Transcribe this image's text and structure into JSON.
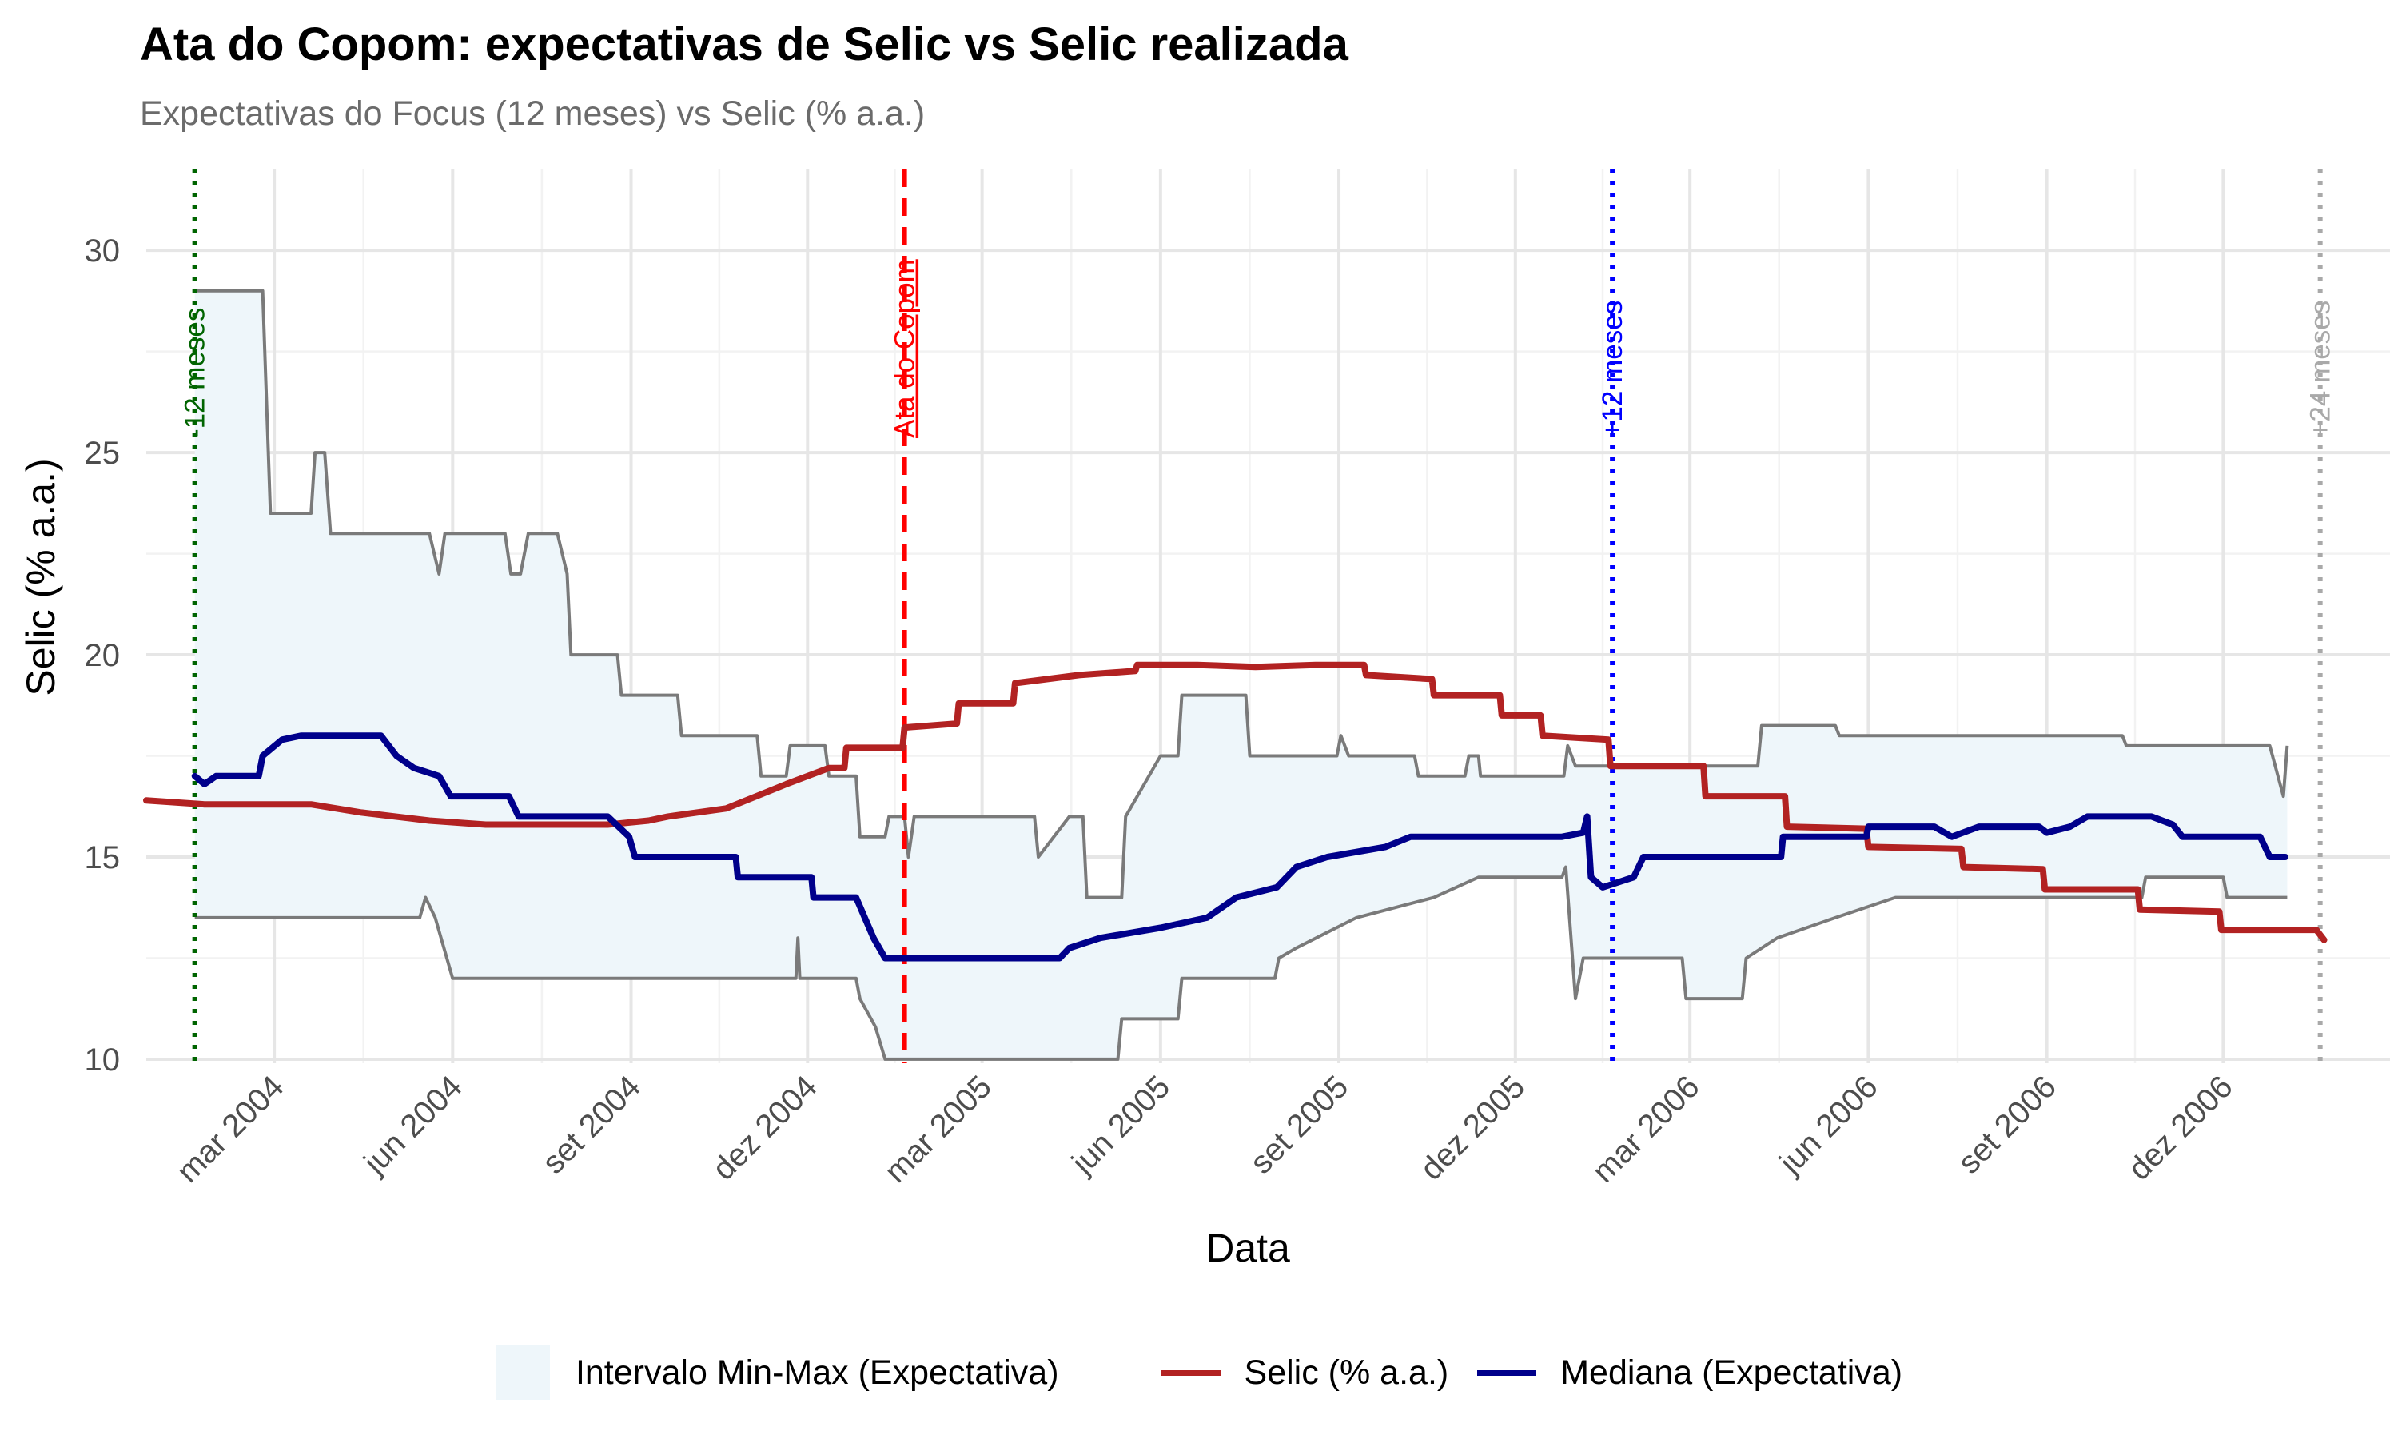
{
  "title": "Ata do Copom: expectativas de Selic vs Selic realizada",
  "subtitle": "Expectativas do Focus (12 meses) vs Selic (% a.a.)",
  "legend": {
    "ribbon": "Intervalo Min-Max (Expectativa)",
    "selic": "Selic (% a.a.)",
    "median": "Mediana (Expectativa)"
  },
  "colors": {
    "selic": "#b22222",
    "median": "#00008b",
    "band_fill": "#eef6fa",
    "band_edge": "#7a7a7a",
    "vline_minus12": "#006400",
    "vline_ata": "#ff0000",
    "vline_plus12": "#0000ff",
    "vline_plus24": "#a9a9a9"
  },
  "chart_data": {
    "type": "line",
    "title": "Ata do Copom: expectativas de Selic vs Selic realizada",
    "subtitle": "Expectativas do Focus (12 meses) vs Selic (% a.a.)",
    "xlabel": "Data",
    "ylabel": "Selic (% a.a.)",
    "xlim": [
      "2003-12-26",
      "2007-02-25"
    ],
    "ylim": [
      9.9,
      32.0
    ],
    "x_ticks": [
      {
        "date": "2004-03-01",
        "label": "mar 2004"
      },
      {
        "date": "2004-06-01",
        "label": "jun 2004"
      },
      {
        "date": "2004-09-01",
        "label": "set 2004"
      },
      {
        "date": "2004-12-01",
        "label": "dez 2004"
      },
      {
        "date": "2005-03-01",
        "label": "mar 2005"
      },
      {
        "date": "2005-06-01",
        "label": "jun 2005"
      },
      {
        "date": "2005-09-01",
        "label": "set 2005"
      },
      {
        "date": "2005-12-01",
        "label": "dez 2005"
      },
      {
        "date": "2006-03-01",
        "label": "mar 2006"
      },
      {
        "date": "2006-06-01",
        "label": "jun 2006"
      },
      {
        "date": "2006-09-01",
        "label": "set 2006"
      },
      {
        "date": "2006-12-01",
        "label": "dez 2006"
      }
    ],
    "y_ticks": [
      10,
      15,
      20,
      25,
      30
    ],
    "grid": true,
    "legend_position": "bottom",
    "reference_lines": [
      {
        "date": "2004-01-20",
        "label": "-12 meses",
        "style": "dotted",
        "color": "#006400"
      },
      {
        "date": "2005-01-20",
        "label": "Ata do Copom",
        "style": "dashed",
        "color": "#ff0000"
      },
      {
        "date": "2006-01-20",
        "label": "+12 meses",
        "style": "dotted",
        "color": "#0000ff"
      },
      {
        "date": "2007-01-20",
        "label": "+24 meses",
        "style": "dotted",
        "color": "#a9a9a9"
      }
    ],
    "series": [
      {
        "name": "Selic (% a.a.)",
        "kind": "line",
        "points": [
          [
            "2003-12-26",
            16.4
          ],
          [
            "2004-01-25",
            16.3
          ],
          [
            "2004-02-18",
            16.3
          ],
          [
            "2004-03-20",
            16.3
          ],
          [
            "2004-04-15",
            16.1
          ],
          [
            "2004-05-20",
            15.9
          ],
          [
            "2004-06-18",
            15.8
          ],
          [
            "2004-07-20",
            15.8
          ],
          [
            "2004-08-20",
            15.8
          ],
          [
            "2004-09-10",
            15.9
          ],
          [
            "2004-09-20",
            16.0
          ],
          [
            "2004-10-20",
            16.2
          ],
          [
            "2004-11-20",
            16.8
          ],
          [
            "2004-12-12",
            17.2
          ],
          [
            "2004-12-20",
            17.2
          ],
          [
            "2004-12-21",
            17.7
          ],
          [
            "2005-01-19",
            17.7
          ],
          [
            "2005-01-20",
            18.2
          ],
          [
            "2005-02-16",
            18.3
          ],
          [
            "2005-02-17",
            18.8
          ],
          [
            "2005-03-17",
            18.8
          ],
          [
            "2005-03-18",
            19.3
          ],
          [
            "2005-04-20",
            19.5
          ],
          [
            "2005-05-19",
            19.6
          ],
          [
            "2005-05-20",
            19.75
          ],
          [
            "2005-06-20",
            19.75
          ],
          [
            "2005-07-20",
            19.7
          ],
          [
            "2005-08-20",
            19.75
          ],
          [
            "2005-09-14",
            19.75
          ],
          [
            "2005-09-15",
            19.5
          ],
          [
            "2005-10-19",
            19.4
          ],
          [
            "2005-10-20",
            19.0
          ],
          [
            "2005-11-23",
            19.0
          ],
          [
            "2005-11-24",
            18.5
          ],
          [
            "2005-12-14",
            18.5
          ],
          [
            "2005-12-15",
            18.0
          ],
          [
            "2006-01-18",
            17.9
          ],
          [
            "2006-01-19",
            17.25
          ],
          [
            "2006-03-08",
            17.25
          ],
          [
            "2006-03-09",
            16.5
          ],
          [
            "2006-04-19",
            16.5
          ],
          [
            "2006-04-20",
            15.75
          ],
          [
            "2006-05-31",
            15.7
          ],
          [
            "2006-06-01",
            15.25
          ],
          [
            "2006-07-19",
            15.2
          ],
          [
            "2006-07-20",
            14.75
          ],
          [
            "2006-08-30",
            14.7
          ],
          [
            "2006-08-31",
            14.2
          ],
          [
            "2006-10-18",
            14.2
          ],
          [
            "2006-10-19",
            13.7
          ],
          [
            "2006-11-29",
            13.65
          ],
          [
            "2006-11-30",
            13.2
          ],
          [
            "2007-01-18",
            13.2
          ],
          [
            "2007-01-22",
            12.95
          ]
        ]
      },
      {
        "name": "Mediana (Expectativa)",
        "kind": "line",
        "points": [
          [
            "2004-01-20",
            17.0
          ],
          [
            "2004-01-25",
            16.8
          ],
          [
            "2004-01-31",
            17.0
          ],
          [
            "2004-02-22",
            17.0
          ],
          [
            "2004-02-24",
            17.5
          ],
          [
            "2004-03-05",
            17.9
          ],
          [
            "2004-03-15",
            18.0
          ],
          [
            "2004-04-10",
            18.0
          ],
          [
            "2004-04-25",
            18.0
          ],
          [
            "2004-05-03",
            17.5
          ],
          [
            "2004-05-12",
            17.2
          ],
          [
            "2004-05-25",
            17.0
          ],
          [
            "2004-05-31",
            16.5
          ],
          [
            "2004-06-30",
            16.5
          ],
          [
            "2004-07-05",
            16.0
          ],
          [
            "2004-08-20",
            16.0
          ],
          [
            "2004-08-31",
            15.5
          ],
          [
            "2004-09-03",
            15.0
          ],
          [
            "2004-10-25",
            15.0
          ],
          [
            "2004-10-26",
            14.5
          ],
          [
            "2004-12-03",
            14.5
          ],
          [
            "2004-12-04",
            14.0
          ],
          [
            "2004-12-26",
            14.0
          ],
          [
            "2005-01-04",
            13.0
          ],
          [
            "2005-01-10",
            12.5
          ],
          [
            "2005-03-15",
            12.5
          ],
          [
            "2005-04-10",
            12.5
          ],
          [
            "2005-04-15",
            12.75
          ],
          [
            "2005-05-01",
            13.0
          ],
          [
            "2005-06-01",
            13.25
          ],
          [
            "2005-06-25",
            13.5
          ],
          [
            "2005-07-10",
            14.0
          ],
          [
            "2005-07-31",
            14.25
          ],
          [
            "2005-08-10",
            14.75
          ],
          [
            "2005-08-26",
            15.0
          ],
          [
            "2005-09-25",
            15.25
          ],
          [
            "2005-10-08",
            15.5
          ],
          [
            "2005-12-25",
            15.5
          ],
          [
            "2006-01-05",
            15.6
          ],
          [
            "2006-01-07",
            16.0
          ],
          [
            "2006-01-09",
            14.5
          ],
          [
            "2006-01-15",
            14.25
          ],
          [
            "2006-01-31",
            14.5
          ],
          [
            "2006-02-05",
            15.0
          ],
          [
            "2006-04-17",
            15.0
          ],
          [
            "2006-04-18",
            15.5
          ],
          [
            "2006-05-31",
            15.5
          ],
          [
            "2006-06-01",
            15.75
          ],
          [
            "2006-07-05",
            15.75
          ],
          [
            "2006-07-14",
            15.5
          ],
          [
            "2006-07-28",
            15.75
          ],
          [
            "2006-08-28",
            15.75
          ],
          [
            "2006-09-01",
            15.6
          ],
          [
            "2006-09-13",
            15.75
          ],
          [
            "2006-09-22",
            16.0
          ],
          [
            "2006-10-25",
            16.0
          ],
          [
            "2006-11-05",
            15.8
          ],
          [
            "2006-11-10",
            15.5
          ],
          [
            "2006-12-20",
            15.5
          ],
          [
            "2006-12-25",
            15.0
          ],
          [
            "2007-01-02",
            15.0
          ]
        ]
      },
      {
        "name": "Intervalo Min-Max (Expectativa)",
        "kind": "ribbon",
        "upper": [
          [
            "2004-01-20",
            29.0
          ],
          [
            "2004-02-24",
            29.0
          ],
          [
            "2004-02-28",
            23.5
          ],
          [
            "2004-03-20",
            23.5
          ],
          [
            "2004-03-22",
            25.0
          ],
          [
            "2004-03-27",
            25.0
          ],
          [
            "2004-03-30",
            23.0
          ],
          [
            "2004-05-20",
            23.0
          ],
          [
            "2004-05-25",
            22.0
          ],
          [
            "2004-05-28",
            23.0
          ],
          [
            "2004-06-28",
            23.0
          ],
          [
            "2004-07-01",
            22.0
          ],
          [
            "2004-07-06",
            22.0
          ],
          [
            "2004-07-10",
            23.0
          ],
          [
            "2004-07-25",
            23.0
          ],
          [
            "2004-07-30",
            22.0
          ],
          [
            "2004-08-01",
            20.0
          ],
          [
            "2004-08-25",
            20.0
          ],
          [
            "2004-08-27",
            19.0
          ],
          [
            "2004-09-25",
            19.0
          ],
          [
            "2004-09-27",
            18.0
          ],
          [
            "2004-11-05",
            18.0
          ],
          [
            "2004-11-07",
            17.0
          ],
          [
            "2004-11-20",
            17.0
          ],
          [
            "2004-11-22",
            17.75
          ],
          [
            "2004-12-10",
            17.75
          ],
          [
            "2004-12-12",
            17.0
          ],
          [
            "2004-12-26",
            17.0
          ],
          [
            "2004-12-28",
            15.5
          ],
          [
            "2005-01-10",
            15.5
          ],
          [
            "2005-01-12",
            16.0
          ],
          [
            "2005-01-20",
            16.0
          ],
          [
            "2005-01-22",
            15.0
          ],
          [
            "2005-01-25",
            16.0
          ],
          [
            "2005-03-20",
            16.0
          ],
          [
            "2005-03-28",
            16.0
          ],
          [
            "2005-03-30",
            15.0
          ],
          [
            "2005-04-15",
            16.0
          ],
          [
            "2005-04-22",
            16.0
          ],
          [
            "2005-04-24",
            14.0
          ],
          [
            "2005-05-12",
            14.0
          ],
          [
            "2005-05-14",
            16.0
          ],
          [
            "2005-06-01",
            17.5
          ],
          [
            "2005-06-10",
            17.5
          ],
          [
            "2005-06-12",
            19.0
          ],
          [
            "2005-07-15",
            19.0
          ],
          [
            "2005-07-17",
            17.5
          ],
          [
            "2005-08-31",
            17.5
          ],
          [
            "2005-09-02",
            18.0
          ],
          [
            "2005-09-06",
            17.5
          ],
          [
            "2005-10-10",
            17.5
          ],
          [
            "2005-10-12",
            17.0
          ],
          [
            "2005-11-05",
            17.0
          ],
          [
            "2005-11-07",
            17.5
          ],
          [
            "2005-11-12",
            17.5
          ],
          [
            "2005-11-13",
            17.0
          ],
          [
            "2005-12-26",
            17.0
          ],
          [
            "2005-12-28",
            17.75
          ],
          [
            "2006-01-01",
            17.25
          ],
          [
            "2006-04-05",
            17.25
          ],
          [
            "2006-04-07",
            18.25
          ],
          [
            "2006-05-15",
            18.25
          ],
          [
            "2006-05-17",
            18.0
          ],
          [
            "2006-10-10",
            18.0
          ],
          [
            "2006-10-12",
            17.75
          ],
          [
            "2006-12-25",
            17.75
          ],
          [
            "2007-01-01",
            16.5
          ],
          [
            "2007-01-03",
            17.75
          ]
        ],
        "lower": [
          [
            "2004-01-20",
            13.5
          ],
          [
            "2004-05-15",
            13.5
          ],
          [
            "2004-05-18",
            14.0
          ],
          [
            "2004-05-23",
            13.5
          ],
          [
            "2004-06-01",
            12.0
          ],
          [
            "2004-11-25",
            12.0
          ],
          [
            "2004-11-26",
            13.0
          ],
          [
            "2004-11-27",
            12.0
          ],
          [
            "2004-12-26",
            12.0
          ],
          [
            "2004-12-28",
            11.5
          ],
          [
            "2005-01-05",
            10.8
          ],
          [
            "2005-01-10",
            10.0
          ],
          [
            "2005-05-10",
            10.0
          ],
          [
            "2005-05-12",
            11.0
          ],
          [
            "2005-06-10",
            11.0
          ],
          [
            "2005-06-12",
            12.0
          ],
          [
            "2005-07-30",
            12.0
          ],
          [
            "2005-08-01",
            12.5
          ],
          [
            "2005-08-10",
            12.75
          ],
          [
            "2005-09-10",
            13.5
          ],
          [
            "2005-10-20",
            14.0
          ],
          [
            "2005-11-12",
            14.5
          ],
          [
            "2005-12-25",
            14.5
          ],
          [
            "2005-12-27",
            14.75
          ],
          [
            "2006-01-01",
            11.5
          ],
          [
            "2006-01-05",
            12.5
          ],
          [
            "2006-02-25",
            12.5
          ],
          [
            "2006-02-27",
            11.5
          ],
          [
            "2006-03-28",
            11.5
          ],
          [
            "2006-03-30",
            12.5
          ],
          [
            "2006-04-15",
            13.0
          ],
          [
            "2006-05-15",
            13.5
          ],
          [
            "2006-06-15",
            14.0
          ],
          [
            "2006-10-20",
            14.0
          ],
          [
            "2006-10-22",
            14.5
          ],
          [
            "2006-12-01",
            14.5
          ],
          [
            "2006-12-03",
            14.0
          ],
          [
            "2007-01-03",
            14.0
          ]
        ]
      }
    ]
  }
}
